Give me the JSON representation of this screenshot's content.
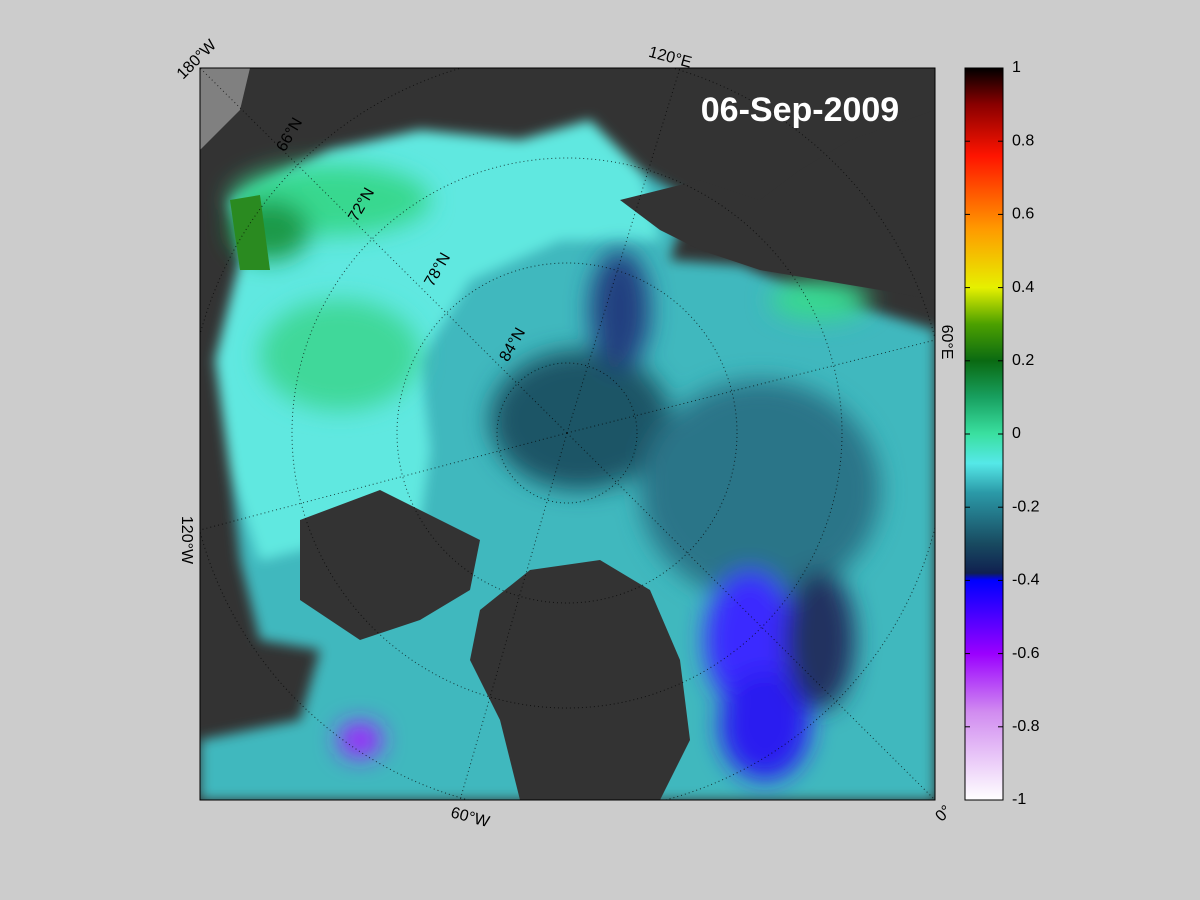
{
  "map": {
    "date": "06-Sep-2009",
    "lon_labels": [
      "180°W",
      "120°E",
      "60°E",
      "0°",
      "60°W",
      "120°W"
    ],
    "lat_labels": [
      "66°N",
      "72°N",
      "78°N",
      "84°N"
    ]
  },
  "colorbar": {
    "lim": [
      -1,
      1
    ],
    "ticks": [
      1,
      0.8,
      0.6,
      0.4,
      0.2,
      0,
      -0.2,
      -0.4,
      -0.6,
      -0.8,
      -1
    ]
  }
}
